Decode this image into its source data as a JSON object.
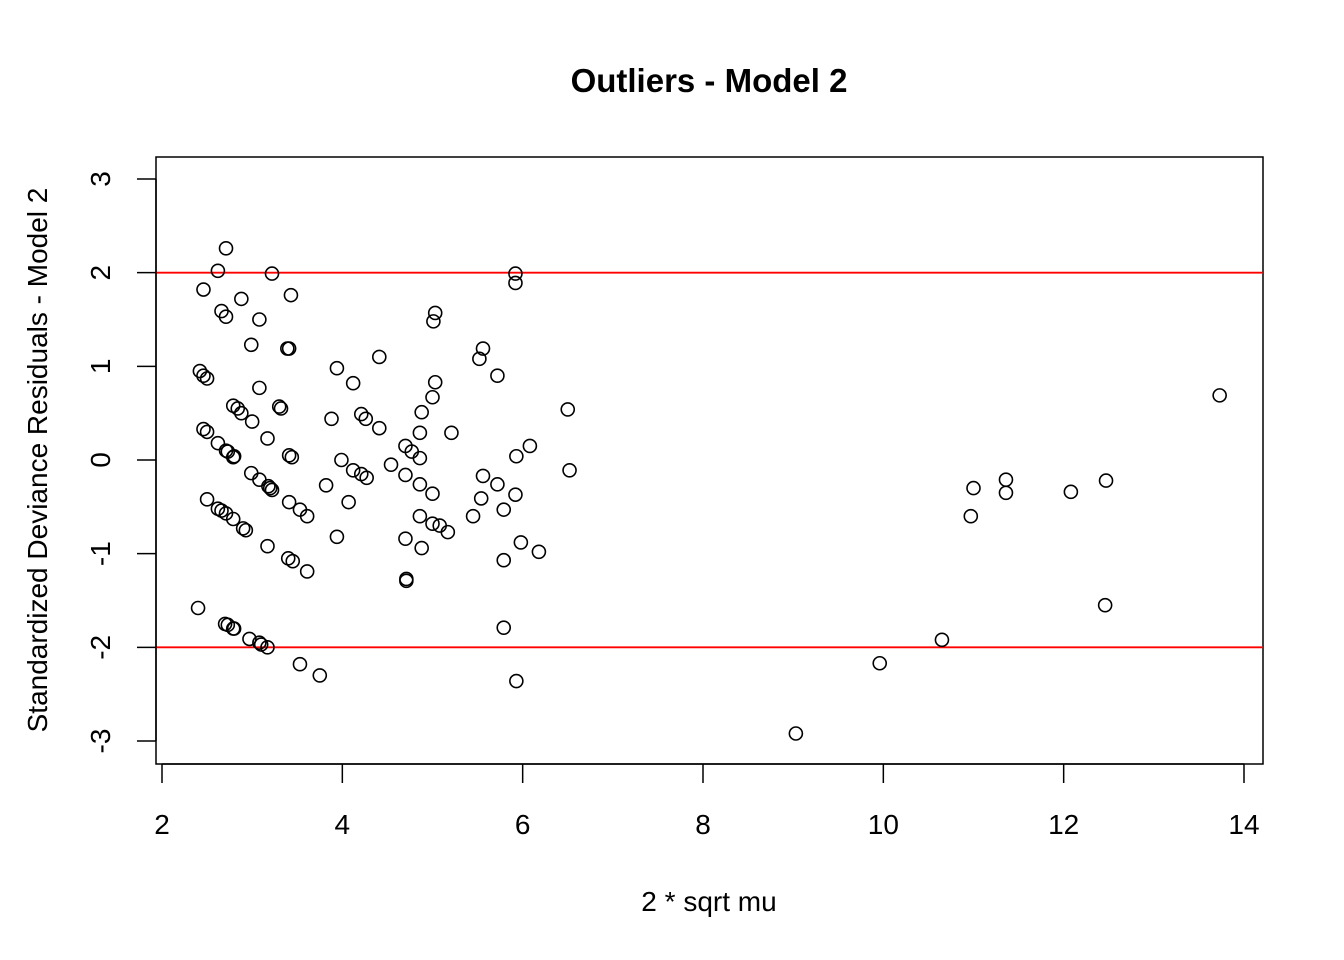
{
  "chart_data": {
    "type": "scatter",
    "title": "Outliers - Model 2",
    "xlabel": "2 * sqrt mu",
    "ylabel": "Standardized Deviance Residuals - Model 2",
    "xlim": [
      1.95,
      14.2
    ],
    "ylim": [
      -3.25,
      3.25
    ],
    "x_ticks": [
      2,
      4,
      6,
      8,
      10,
      12,
      14
    ],
    "y_ticks": [
      -3,
      -2,
      -1,
      0,
      1,
      2,
      3
    ],
    "reference_lines": [
      {
        "y": 2,
        "color": "#ff0000"
      },
      {
        "y": -2,
        "color": "#ff0000"
      }
    ],
    "grid": false,
    "marker": "open-circle",
    "point_color": "#000000",
    "points": [
      [
        2.71,
        2.26
      ],
      [
        2.62,
        2.02
      ],
      [
        3.22,
        1.99
      ],
      [
        2.46,
        1.82
      ],
      [
        3.43,
        1.76
      ],
      [
        2.88,
        1.72
      ],
      [
        2.66,
        1.59
      ],
      [
        2.71,
        1.53
      ],
      [
        3.08,
        1.5
      ],
      [
        2.99,
        1.23
      ],
      [
        3.39,
        1.19
      ],
      [
        3.41,
        1.19
      ],
      [
        2.42,
        0.95
      ],
      [
        2.46,
        0.9
      ],
      [
        2.5,
        0.87
      ],
      [
        3.08,
        0.77
      ],
      [
        2.79,
        0.58
      ],
      [
        2.84,
        0.55
      ],
      [
        2.88,
        0.5
      ],
      [
        3.3,
        0.57
      ],
      [
        3.32,
        0.55
      ],
      [
        3.0,
        0.41
      ],
      [
        2.46,
        0.33
      ],
      [
        2.5,
        0.3
      ],
      [
        3.17,
        0.23
      ],
      [
        2.62,
        0.18
      ],
      [
        2.71,
        0.1
      ],
      [
        2.73,
        0.09
      ],
      [
        2.8,
        0.04
      ],
      [
        2.79,
        0.03
      ],
      [
        3.41,
        0.05
      ],
      [
        3.44,
        0.03
      ],
      [
        2.99,
        -0.14
      ],
      [
        3.08,
        -0.21
      ],
      [
        3.18,
        -0.28
      ],
      [
        3.22,
        -0.32
      ],
      [
        3.2,
        -0.3
      ],
      [
        2.5,
        -0.42
      ],
      [
        3.41,
        -0.45
      ],
      [
        3.53,
        -0.53
      ],
      [
        3.61,
        -0.6
      ],
      [
        2.62,
        -0.52
      ],
      [
        2.66,
        -0.54
      ],
      [
        2.71,
        -0.57
      ],
      [
        2.79,
        -0.63
      ],
      [
        2.9,
        -0.73
      ],
      [
        2.93,
        -0.75
      ],
      [
        3.17,
        -0.92
      ],
      [
        3.4,
        -1.05
      ],
      [
        3.45,
        -1.08
      ],
      [
        3.61,
        -1.19
      ],
      [
        2.4,
        -1.58
      ],
      [
        2.7,
        -1.75
      ],
      [
        2.73,
        -1.76
      ],
      [
        2.8,
        -1.8
      ],
      [
        2.79,
        -1.8
      ],
      [
        2.97,
        -1.91
      ],
      [
        3.08,
        -1.95
      ],
      [
        3.1,
        -1.97
      ],
      [
        3.17,
        -2.0
      ],
      [
        3.53,
        -2.18
      ],
      [
        3.75,
        -2.3
      ],
      [
        4.41,
        1.1
      ],
      [
        3.94,
        0.98
      ],
      [
        4.12,
        0.82
      ],
      [
        3.88,
        0.44
      ],
      [
        4.21,
        0.49
      ],
      [
        4.26,
        0.44
      ],
      [
        4.41,
        0.34
      ],
      [
        3.99,
        0.0
      ],
      [
        4.12,
        -0.11
      ],
      [
        4.21,
        -0.15
      ],
      [
        4.27,
        -0.19
      ],
      [
        3.82,
        -0.27
      ],
      [
        4.07,
        -0.45
      ],
      [
        3.94,
        -0.82
      ],
      [
        5.03,
        1.57
      ],
      [
        5.01,
        1.48
      ],
      [
        5.56,
        1.19
      ],
      [
        5.52,
        1.08
      ],
      [
        5.72,
        0.9
      ],
      [
        5.03,
        0.83
      ],
      [
        5.0,
        0.67
      ],
      [
        4.88,
        0.51
      ],
      [
        6.5,
        0.54
      ],
      [
        5.21,
        0.29
      ],
      [
        4.86,
        0.29
      ],
      [
        4.7,
        0.15
      ],
      [
        4.77,
        0.09
      ],
      [
        4.86,
        0.02
      ],
      [
        6.08,
        0.15
      ],
      [
        5.93,
        0.04
      ],
      [
        4.54,
        -0.05
      ],
      [
        4.7,
        -0.16
      ],
      [
        5.56,
        -0.17
      ],
      [
        6.52,
        -0.11
      ],
      [
        4.86,
        -0.26
      ],
      [
        5.72,
        -0.26
      ],
      [
        5.0,
        -0.36
      ],
      [
        5.54,
        -0.41
      ],
      [
        5.92,
        -0.37
      ],
      [
        5.45,
        -0.6
      ],
      [
        5.79,
        -0.53
      ],
      [
        4.86,
        -0.6
      ],
      [
        5.0,
        -0.68
      ],
      [
        5.08,
        -0.7
      ],
      [
        5.17,
        -0.77
      ],
      [
        4.7,
        -0.84
      ],
      [
        4.88,
        -0.94
      ],
      [
        5.98,
        -0.88
      ],
      [
        6.18,
        -0.98
      ],
      [
        5.79,
        -1.07
      ],
      [
        4.71,
        -1.27
      ],
      [
        4.71,
        -1.29
      ],
      [
        5.79,
        -1.79
      ],
      [
        5.93,
        -2.36
      ],
      [
        5.92,
        1.99
      ],
      [
        5.92,
        1.89
      ],
      [
        9.03,
        -2.92
      ],
      [
        9.96,
        -2.17
      ],
      [
        10.65,
        -1.92
      ],
      [
        10.97,
        -0.6
      ],
      [
        11.0,
        -0.3
      ],
      [
        11.36,
        -0.21
      ],
      [
        11.36,
        -0.35
      ],
      [
        12.08,
        -0.34
      ],
      [
        12.47,
        -0.22
      ],
      [
        12.46,
        -1.55
      ],
      [
        13.73,
        0.69
      ]
    ]
  }
}
